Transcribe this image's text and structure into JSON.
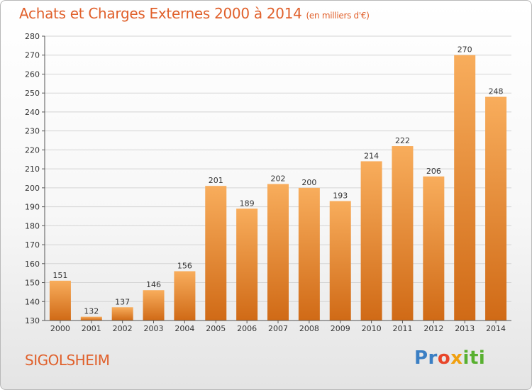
{
  "title": "Achats et Charges Externes 2000 à 2014",
  "unit": "(en milliers d'€)",
  "town": "SIGOLSHEIM",
  "logo": {
    "text": "Proxiti",
    "colors": [
      "#3b7fc4",
      "#e8462a",
      "#f0a010",
      "#58b030"
    ]
  },
  "colors": {
    "accent": "#e0602b",
    "bar_light": "#f8ad5c",
    "bar_dark": "#d06a16"
  },
  "chart_data": {
    "type": "bar",
    "categories": [
      "2000",
      "2001",
      "2002",
      "2003",
      "2004",
      "2005",
      "2006",
      "2007",
      "2008",
      "2009",
      "2010",
      "2011",
      "2012",
      "2013",
      "2014"
    ],
    "values": [
      151,
      132,
      137,
      146,
      156,
      201,
      189,
      202,
      200,
      193,
      214,
      222,
      206,
      270,
      248
    ],
    "title": "Achats et Charges Externes 2000 à 2014",
    "xlabel": "",
    "ylabel": "",
    "ylim": [
      130,
      280
    ],
    "yticks": [
      130,
      140,
      150,
      160,
      170,
      180,
      190,
      200,
      210,
      220,
      230,
      240,
      250,
      260,
      270,
      280
    ],
    "grid": true,
    "data_labels": true
  }
}
